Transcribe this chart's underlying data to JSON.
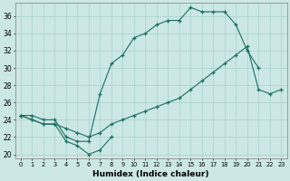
{
  "xlabel": "Humidex (Indice chaleur)",
  "bg_color": "#cce8e4",
  "line_color": "#1a6e62",
  "grid_color": "#aed4cf",
  "xlim": [
    -0.5,
    23.5
  ],
  "ylim": [
    19.5,
    37.5
  ],
  "xticks": [
    0,
    1,
    2,
    3,
    4,
    5,
    6,
    7,
    8,
    9,
    10,
    11,
    12,
    13,
    14,
    15,
    16,
    17,
    18,
    19,
    20,
    21,
    22,
    23
  ],
  "yticks": [
    20,
    22,
    24,
    26,
    28,
    30,
    32,
    34,
    36
  ],
  "curve1_x": [
    0,
    1,
    2,
    3,
    4,
    5,
    6,
    7,
    8,
    9,
    10,
    11,
    12,
    13,
    14,
    15,
    16,
    17,
    18,
    19,
    20,
    21
  ],
  "curve1_y": [
    24.5,
    24.5,
    24.0,
    24.0,
    22.0,
    21.5,
    21.5,
    27.0,
    30.5,
    31.5,
    33.5,
    34.0,
    35.0,
    35.5,
    35.5,
    37.0,
    36.5,
    36.5,
    36.5,
    35.0,
    32.0,
    30.0
  ],
  "curve2_x": [
    0,
    1,
    2,
    3,
    4,
    5,
    6,
    7,
    8
  ],
  "curve2_y": [
    24.5,
    24.0,
    23.5,
    23.5,
    21.5,
    21.0,
    20.0,
    20.5,
    22.0
  ],
  "curve3_x": [
    0,
    1,
    2,
    3,
    4,
    5,
    6,
    7,
    8,
    9,
    10,
    11,
    12,
    13,
    14,
    15,
    16,
    17,
    18,
    19,
    20,
    21,
    22,
    23
  ],
  "curve3_y": [
    24.5,
    24.0,
    23.5,
    23.5,
    23.0,
    22.5,
    22.0,
    22.5,
    23.5,
    24.0,
    24.5,
    25.0,
    25.5,
    26.0,
    26.5,
    27.5,
    28.5,
    29.5,
    30.5,
    31.5,
    32.5,
    27.5,
    27.0,
    27.5
  ]
}
